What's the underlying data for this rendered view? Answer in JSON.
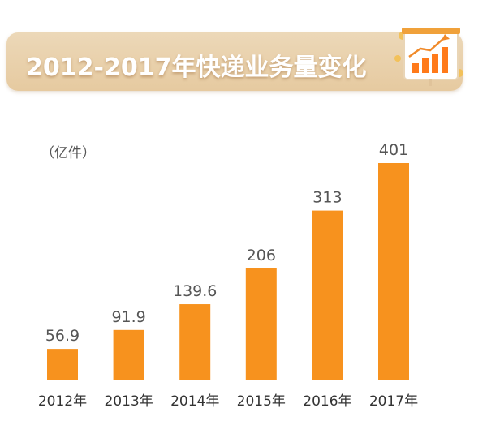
{
  "header": {
    "title": "2012-2017年快递业务量变化",
    "icon": "rising-bar-chart-board-icon"
  },
  "colors": {
    "bar": "#f7921e",
    "banner": "#e8cfa8",
    "banner_text": "#ffffff",
    "text": "#555555"
  },
  "chart_data": {
    "type": "bar",
    "title": "2012-2017年快递业务量变化",
    "unit_label": "（亿件）",
    "categories": [
      "2012年",
      "2013年",
      "2014年",
      "2015年",
      "2016年",
      "2017年"
    ],
    "values": [
      56.9,
      91.9,
      139.6,
      206,
      313,
      401
    ],
    "value_labels": [
      "56.9",
      "91.9",
      "139.6",
      "206",
      "313",
      "401"
    ],
    "ylim": [
      0,
      401
    ],
    "grid": false,
    "legend": "none"
  }
}
